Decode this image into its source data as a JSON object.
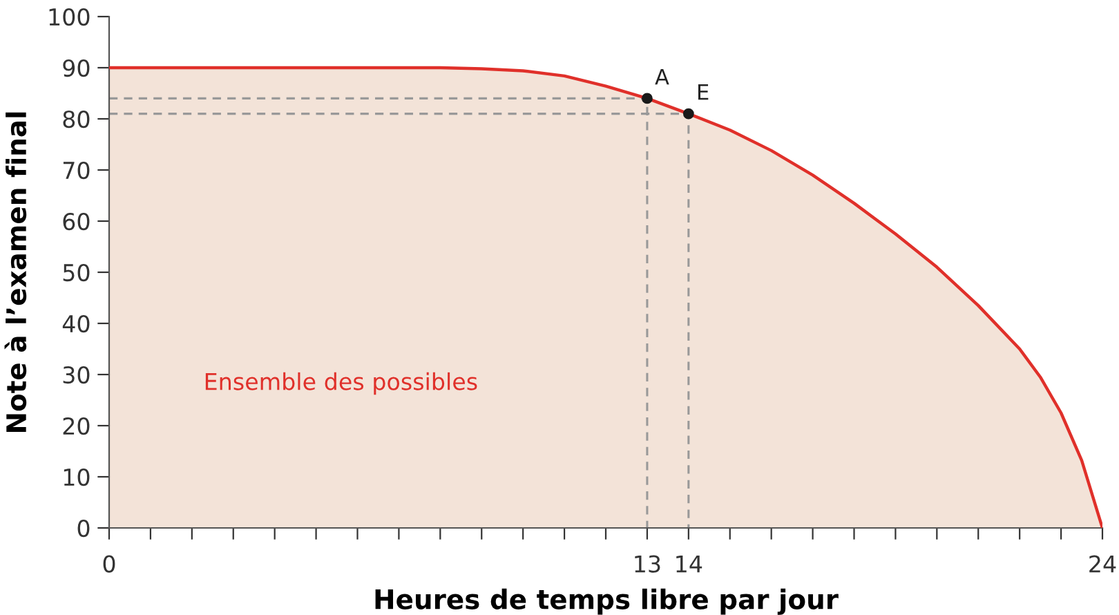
{
  "chart_data": {
    "type": "area",
    "xlabel": "Heures de temps libre par jour",
    "ylabel": "Note à l’examen final",
    "xlim": [
      0,
      24
    ],
    "ylim": [
      0,
      100
    ],
    "xticks": [
      0,
      {
        "value": 1,
        "label": null
      },
      {
        "value": 2,
        "label": null
      },
      {
        "value": 3,
        "label": null
      },
      {
        "value": 4,
        "label": null
      },
      {
        "value": 5,
        "label": null
      },
      {
        "value": 6,
        "label": null
      },
      {
        "value": 7,
        "label": null
      },
      {
        "value": 8,
        "label": null
      },
      {
        "value": 9,
        "label": null
      },
      {
        "value": 10,
        "label": null
      },
      {
        "value": 11,
        "label": null
      },
      {
        "value": 12,
        "label": null
      },
      13,
      14,
      {
        "value": 15,
        "label": null
      },
      {
        "value": 16,
        "label": null
      },
      {
        "value": 17,
        "label": null
      },
      {
        "value": 18,
        "label": null
      },
      {
        "value": 19,
        "label": null
      },
      {
        "value": 20,
        "label": null
      },
      {
        "value": 21,
        "label": null
      },
      {
        "value": 22,
        "label": null
      },
      {
        "value": 23,
        "label": null
      },
      24
    ],
    "yticks": [
      0,
      10,
      20,
      30,
      40,
      50,
      60,
      70,
      80,
      90,
      100
    ],
    "series": [
      {
        "color": "#e0302a",
        "x": [
          0,
          4,
          8,
          9,
          10,
          11,
          12,
          13,
          14,
          15,
          16,
          17,
          18,
          19,
          20,
          21,
          22,
          22.5,
          23,
          23.5,
          24
        ],
        "values": [
          90,
          90,
          90,
          89.8,
          89.4,
          88.4,
          86.4,
          84,
          81,
          77.8,
          73.8,
          69,
          63.5,
          57.5,
          51,
          43.5,
          35,
          29.5,
          22.5,
          13.2,
          0
        ]
      },
      {
        "type": "line",
        "line_style": "dashed",
        "color": "#999999",
        "x": [
          0,
          13,
          13
        ],
        "values": [
          84,
          84,
          0
        ]
      },
      {
        "type": "line",
        "line_style": "dashed",
        "color": "#999999",
        "x": [
          0,
          14,
          14
        ],
        "values": [
          81,
          81,
          0
        ]
      },
      {
        "type": "scatter",
        "color": "#1a1a1a",
        "x": [
          13,
          14
        ],
        "values": [
          84,
          81
        ]
      }
    ],
    "annotations": [
      {
        "text": "A",
        "x": 13,
        "y": 84
      },
      {
        "text": "E",
        "x": 14,
        "y": 81
      },
      "Ensemble des possibles"
    ]
  }
}
